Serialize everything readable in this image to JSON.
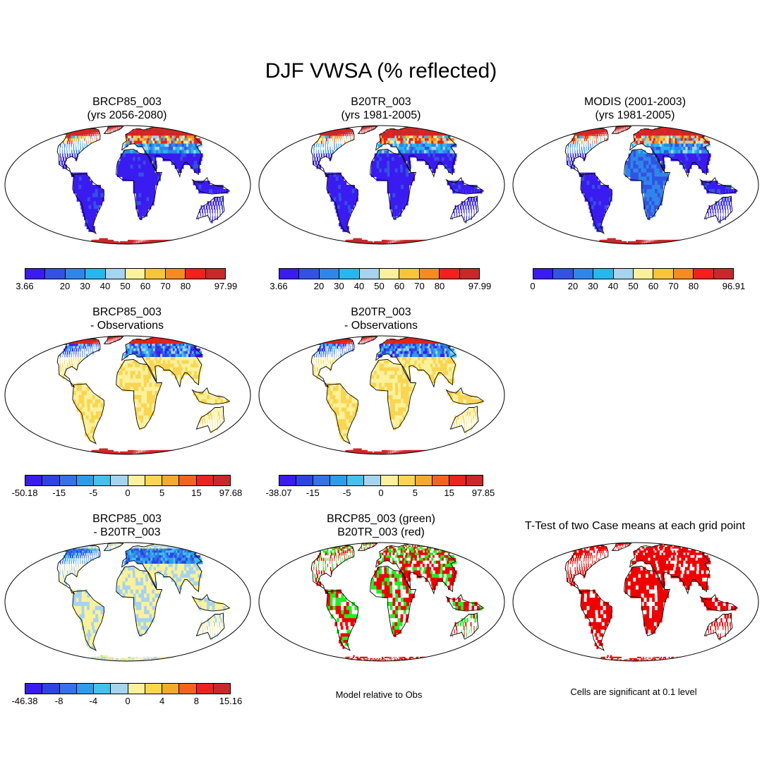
{
  "figure": {
    "title": "DJF VWSA (% reflected)"
  },
  "colors": {
    "abs_scale": [
      "#3a1bf0",
      "#3352e4",
      "#2f86e8",
      "#27b7ef",
      "#a6d3ee",
      "#fbf19a",
      "#f8c43a",
      "#f58b21",
      "#f3201c",
      "#c9282a"
    ],
    "diff_scale": [
      "#3a1bf0",
      "#2d45e0",
      "#3373e6",
      "#2e9de9",
      "#45c0ef",
      "#a6d3ee",
      "#fbf19a",
      "#f9d552",
      "#f5a92e",
      "#f0641f",
      "#e8241d",
      "#c9282a"
    ],
    "diff_scale2": [
      "#3a1bf0",
      "#2d45e0",
      "#3373e6",
      "#2e9de9",
      "#45c0ef",
      "#a6d3ee",
      "#fbf19a",
      "#f9d552",
      "#f5a92e",
      "#f0641f",
      "#e8241d",
      "#c9282a"
    ],
    "green": "#22ee22",
    "red": "#ee0000"
  },
  "panels": {
    "p1": {
      "line1": "BRCP85_003",
      "line2": "(yrs 2056-2080)"
    },
    "p2": {
      "line1": "B20TR_003",
      "line2": "(yrs 1981-2005)"
    },
    "p3": {
      "line1": "MODIS (2001-2003)",
      "line2": "(yrs 1981-2005)"
    },
    "p4": {
      "line1": "BRCP85_003",
      "line2": "- Observations"
    },
    "p5": {
      "line1": "B20TR_003",
      "line2": "- Observations"
    },
    "p6": {
      "line1": "BRCP85_003",
      "line2": "- B20TR_003"
    },
    "p7": {
      "line1": "BRCP85_003 (green)",
      "line2": "B20TR_003 (red)",
      "caption": "Model relative to Obs"
    },
    "p8": {
      "line1": "T-Test of two Case means at each grid point",
      "caption": "Cells are significant at 0.1 level"
    }
  },
  "colorbars": {
    "cb1": {
      "labels": [
        "3.66",
        "20",
        "30",
        "40",
        "50",
        "60",
        "70",
        "80",
        "97.99"
      ]
    },
    "cb2": {
      "labels": [
        "3.66",
        "20",
        "30",
        "40",
        "50",
        "60",
        "70",
        "80",
        "97.99"
      ]
    },
    "cb3": {
      "labels": [
        "0",
        "20",
        "30",
        "40",
        "50",
        "60",
        "70",
        "80",
        "96.91"
      ]
    },
    "cb4": {
      "labels": [
        "-50.18",
        "-15",
        "-5",
        "0",
        "5",
        "15",
        "97.68"
      ]
    },
    "cb5": {
      "labels": [
        "-38.07",
        "-15",
        "-5",
        "0",
        "5",
        "15",
        "97.85"
      ]
    },
    "cb6": {
      "labels": [
        "-46.38",
        "-8",
        "-4",
        "0",
        "4",
        "8",
        "15.16"
      ]
    }
  }
}
